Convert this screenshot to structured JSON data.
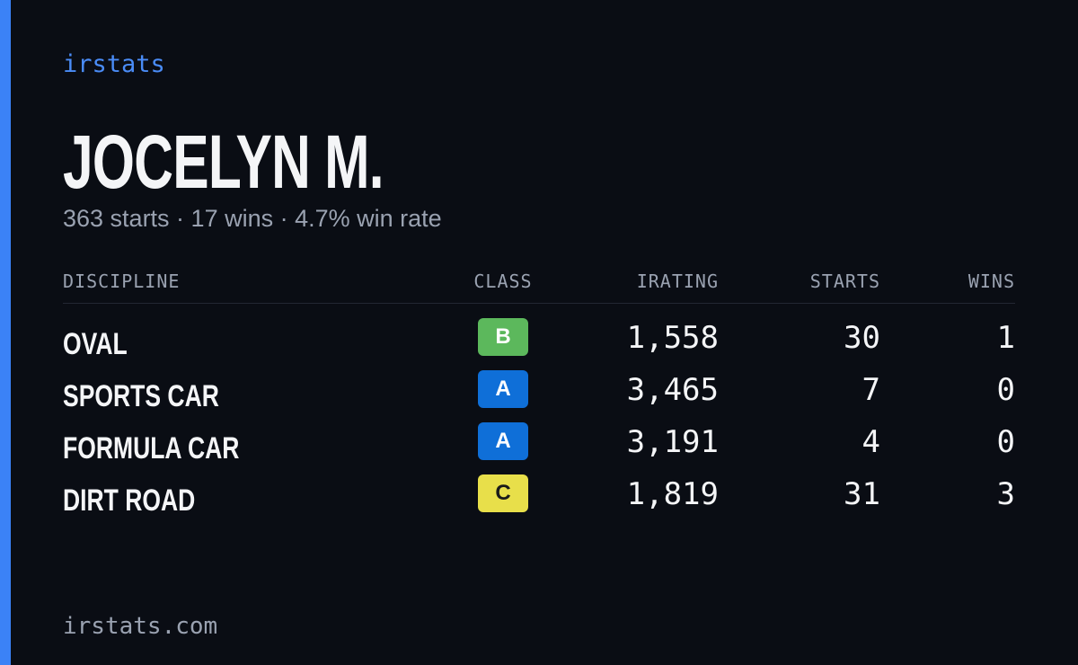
{
  "brand": "irstats",
  "profile": {
    "name": "JOCELYN M.",
    "summary": "363 starts · 17 wins · 4.7% win rate"
  },
  "table": {
    "headers": [
      "DISCIPLINE",
      "CLASS",
      "IRATING",
      "STARTS",
      "WINS"
    ],
    "rows": [
      {
        "discipline": "OVAL",
        "class": "B",
        "class_color": "#5cb85c",
        "irating": "1,558",
        "starts": "30",
        "wins": "1"
      },
      {
        "discipline": "SPORTS CAR",
        "class": "A",
        "class_color": "#0f6fd8",
        "irating": "3,465",
        "starts": "7",
        "wins": "0"
      },
      {
        "discipline": "FORMULA CAR",
        "class": "A",
        "class_color": "#0f6fd8",
        "irating": "3,191",
        "starts": "4",
        "wins": "0"
      },
      {
        "discipline": "DIRT ROAD",
        "class": "C",
        "class_color": "#e8df4a",
        "irating": "1,819",
        "starts": "31",
        "wins": "3"
      }
    ]
  },
  "footer": {
    "url": "irstats.com"
  }
}
